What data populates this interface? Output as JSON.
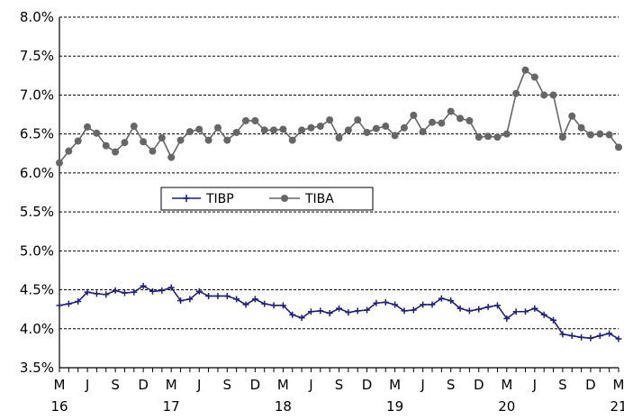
{
  "chart_data": {
    "type": "line",
    "title": "",
    "xlabel": "",
    "ylabel": "",
    "ylim": [
      3.5,
      8.0
    ],
    "y_ticks": [
      "8.0%",
      "7.5%",
      "7.0%",
      "6.5%",
      "6.0%",
      "5.5%",
      "5.0%",
      "4.5%",
      "4.0%",
      "3.5%"
    ],
    "x_month_ticks": [
      "M",
      "J",
      "S",
      "D",
      "M",
      "J",
      "S",
      "D",
      "M",
      "J",
      "S",
      "D",
      "M",
      "J",
      "S",
      "D",
      "M",
      "J",
      "S",
      "D",
      "M"
    ],
    "x_year_ticks": [
      "16",
      "17",
      "18",
      "19",
      "20",
      "21"
    ],
    "x": [
      "2016-03",
      "2016-04",
      "2016-05",
      "2016-06",
      "2016-07",
      "2016-08",
      "2016-09",
      "2016-10",
      "2016-11",
      "2016-12",
      "2017-01",
      "2017-02",
      "2017-03",
      "2017-04",
      "2017-05",
      "2017-06",
      "2017-07",
      "2017-08",
      "2017-09",
      "2017-10",
      "2017-11",
      "2017-12",
      "2018-01",
      "2018-02",
      "2018-03",
      "2018-04",
      "2018-05",
      "2018-06",
      "2018-07",
      "2018-08",
      "2018-09",
      "2018-10",
      "2018-11",
      "2018-12",
      "2019-01",
      "2019-02",
      "2019-03",
      "2019-04",
      "2019-05",
      "2019-06",
      "2019-07",
      "2019-08",
      "2019-09",
      "2019-10",
      "2019-11",
      "2019-12",
      "2020-01",
      "2020-02",
      "2020-03",
      "2020-04",
      "2020-05",
      "2020-06",
      "2020-07",
      "2020-08",
      "2020-09",
      "2020-10",
      "2020-11",
      "2020-12",
      "2021-01",
      "2021-02",
      "2021-03"
    ],
    "grid": "horizontal dashed",
    "legend_position": "middle-left",
    "series": [
      {
        "name": "TIBP",
        "color": "#1f1f7a",
        "marker": "plus",
        "values": [
          4.3,
          4.32,
          4.35,
          4.47,
          4.45,
          4.44,
          4.49,
          4.46,
          4.47,
          4.55,
          4.48,
          4.49,
          4.53,
          4.36,
          4.38,
          4.48,
          4.42,
          4.42,
          4.42,
          4.38,
          4.31,
          4.38,
          4.32,
          4.3,
          4.3,
          4.18,
          4.14,
          4.22,
          4.23,
          4.2,
          4.26,
          4.21,
          4.23,
          4.24,
          4.33,
          4.34,
          4.31,
          4.23,
          4.24,
          4.31,
          4.31,
          4.39,
          4.36,
          4.26,
          4.23,
          4.25,
          4.28,
          4.3,
          4.13,
          4.22,
          4.22,
          4.26,
          4.18,
          4.11,
          3.93,
          3.91,
          3.89,
          3.88,
          3.91,
          3.94,
          3.87
        ]
      },
      {
        "name": "TIBA",
        "color": "#666666",
        "marker": "circle",
        "values": [
          6.13,
          6.28,
          6.41,
          6.59,
          6.51,
          6.35,
          6.27,
          6.39,
          6.6,
          6.4,
          6.28,
          6.45,
          6.2,
          6.42,
          6.53,
          6.56,
          6.42,
          6.58,
          6.42,
          6.52,
          6.67,
          6.67,
          6.55,
          6.55,
          6.56,
          6.42,
          6.55,
          6.58,
          6.6,
          6.68,
          6.45,
          6.55,
          6.68,
          6.52,
          6.57,
          6.6,
          6.48,
          6.58,
          6.74,
          6.53,
          6.65,
          6.64,
          6.79,
          6.7,
          6.67,
          6.46,
          6.47,
          6.46,
          6.5,
          7.02,
          7.32,
          7.23,
          7.0,
          7.0,
          6.46,
          6.73,
          6.58,
          6.49,
          6.5,
          6.49,
          6.33
        ]
      }
    ]
  }
}
